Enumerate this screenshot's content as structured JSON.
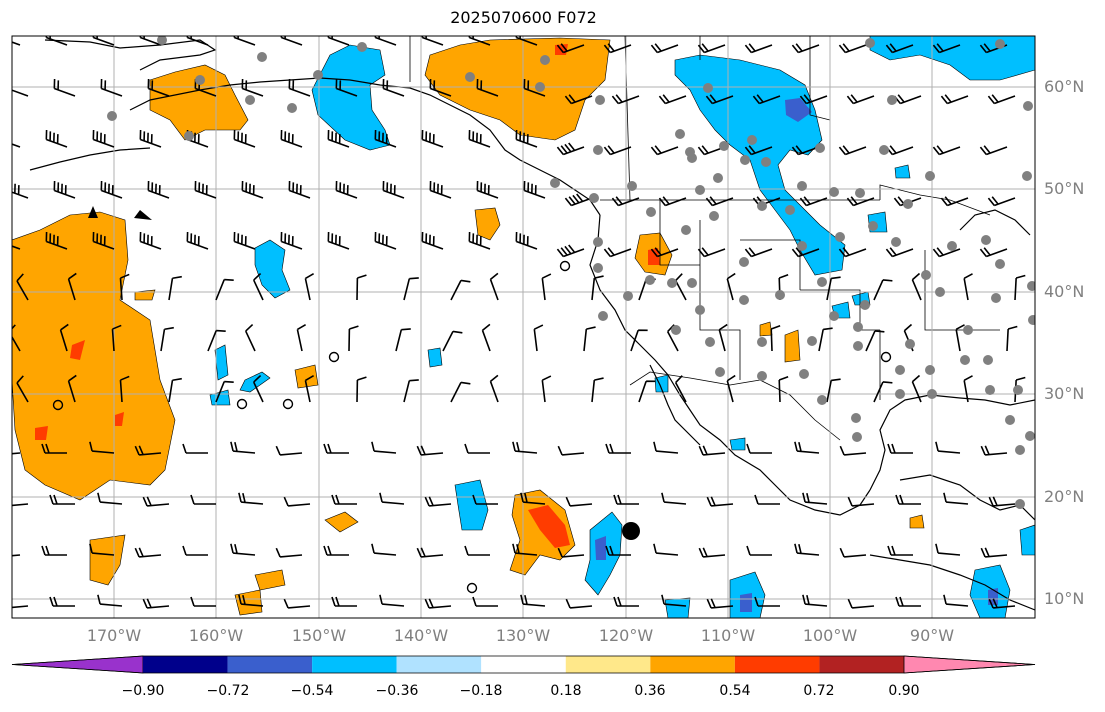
{
  "title": "2025070600 F072",
  "lat_labels": [
    "60°N",
    "50°N",
    "40°N",
    "30°N",
    "20°N",
    "10°N"
  ],
  "lon_labels": [
    "170°W",
    "160°W",
    "150°W",
    "140°W",
    "130°W",
    "120°W",
    "110°W",
    "100°W",
    "90°W"
  ],
  "colorbar": {
    "ticks": [
      "−0.90",
      "−0.72",
      "−0.54",
      "−0.36",
      "−0.18",
      "0.18",
      "0.36",
      "0.54",
      "0.72",
      "0.90"
    ],
    "colors": [
      "#9932cc",
      "#00008b",
      "#3a5fcd",
      "#00bfff",
      "#b0e2ff",
      "#ffffff",
      "#ffe88a",
      "#ffa500",
      "#ff3c00",
      "#b22222",
      "#ff88b0"
    ]
  },
  "extent": {
    "lon_min": -180,
    "lon_max": -80,
    "lat_min": 8,
    "lat_max": 65
  }
}
